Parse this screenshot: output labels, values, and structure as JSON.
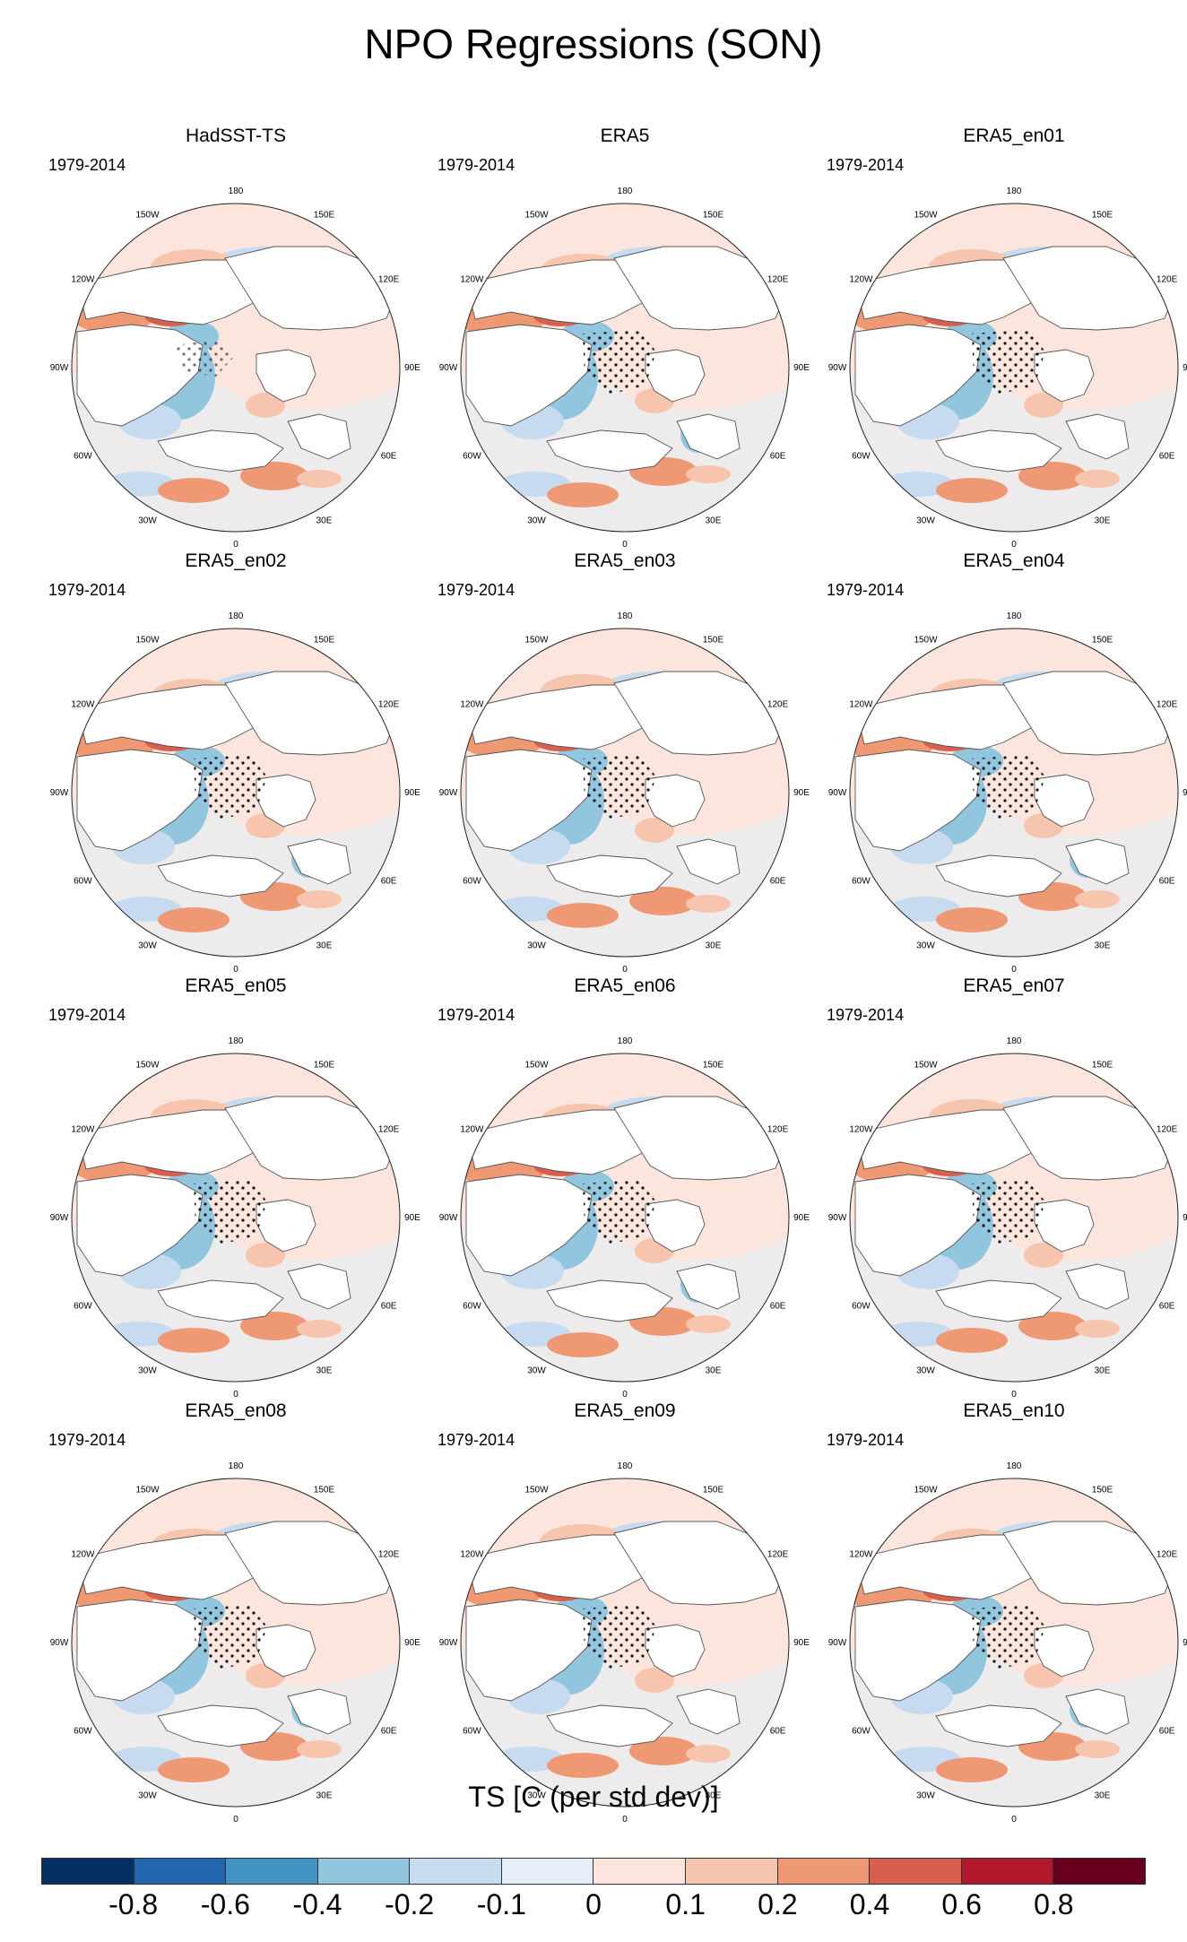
{
  "title": "NPO Regressions (SON)",
  "period": "1979-2014",
  "panels": [
    {
      "name": "HadSST-TS"
    },
    {
      "name": "ERA5"
    },
    {
      "name": "ERA5_en01"
    },
    {
      "name": "ERA5_en02"
    },
    {
      "name": "ERA5_en03"
    },
    {
      "name": "ERA5_en04"
    },
    {
      "name": "ERA5_en05"
    },
    {
      "name": "ERA5_en06"
    },
    {
      "name": "ERA5_en07"
    },
    {
      "name": "ERA5_en08"
    },
    {
      "name": "ERA5_en09"
    },
    {
      "name": "ERA5_en10"
    }
  ],
  "longitude_labels": [
    "180",
    "150E",
    "120E",
    "90E",
    "60E",
    "30E",
    "0",
    "30W",
    "60W",
    "90W",
    "120W",
    "150W"
  ],
  "colorbar": {
    "title": "TS [C (per std dev)]",
    "tick_labels": [
      "-0.8",
      "-0.6",
      "-0.4",
      "-0.2",
      "-0.1",
      "0",
      "0.1",
      "0.2",
      "0.4",
      "0.6",
      "0.8"
    ],
    "colors": [
      "#053061",
      "#2166ac",
      "#4393c3",
      "#92c5de",
      "#c6dbef",
      "#e6eff7",
      "#fbe5dc",
      "#f7c4ad",
      "#ef9874",
      "#d6604d",
      "#b2182b",
      "#67001f"
    ]
  }
}
